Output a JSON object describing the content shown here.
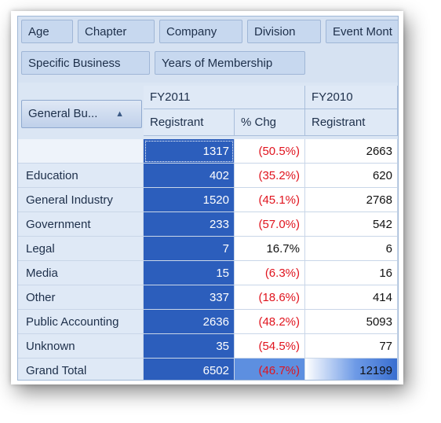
{
  "filter_fields": [
    "Age",
    "Chapter",
    "Company",
    "Division",
    "Event Mont",
    "Specific Business",
    "Years of Membership"
  ],
  "row_field": {
    "label": "General Bu...",
    "sort_icon": "triangle-up-icon"
  },
  "column_groups": [
    {
      "year": "FY2011",
      "columns": [
        "Registrant",
        "% Chg"
      ]
    },
    {
      "year": "FY2010",
      "columns": [
        "Registrant"
      ]
    }
  ],
  "rows": [
    {
      "label": "",
      "registrant_2011": "1317",
      "pct_chg": "(50.5%)",
      "pct_negative": true,
      "registrant_2010": "2663"
    },
    {
      "label": "Education",
      "registrant_2011": "402",
      "pct_chg": "(35.2%)",
      "pct_negative": true,
      "registrant_2010": "620"
    },
    {
      "label": "General Industry",
      "registrant_2011": "1520",
      "pct_chg": "(45.1%)",
      "pct_negative": true,
      "registrant_2010": "2768"
    },
    {
      "label": "Government",
      "registrant_2011": "233",
      "pct_chg": "(57.0%)",
      "pct_negative": true,
      "registrant_2010": "542"
    },
    {
      "label": "Legal",
      "registrant_2011": "7",
      "pct_chg": "16.7%",
      "pct_negative": false,
      "registrant_2010": "6"
    },
    {
      "label": "Media",
      "registrant_2011": "15",
      "pct_chg": "(6.3%)",
      "pct_negative": true,
      "registrant_2010": "16"
    },
    {
      "label": "Other",
      "registrant_2011": "337",
      "pct_chg": "(18.6%)",
      "pct_negative": true,
      "registrant_2010": "414"
    },
    {
      "label": "Public Accounting",
      "registrant_2011": "2636",
      "pct_chg": "(48.2%)",
      "pct_negative": true,
      "registrant_2010": "5093"
    },
    {
      "label": "Unknown",
      "registrant_2011": "35",
      "pct_chg": "(54.5%)",
      "pct_negative": true,
      "registrant_2010": "77"
    }
  ],
  "grand_total": {
    "label": "Grand Total",
    "registrant_2011": "6502",
    "pct_chg": "(46.7%)",
    "pct_negative": true,
    "registrant_2010": "12199"
  },
  "colors": {
    "selection": "#2c5ebc",
    "negative": "#e0141e",
    "header": "#dfe9f6"
  }
}
